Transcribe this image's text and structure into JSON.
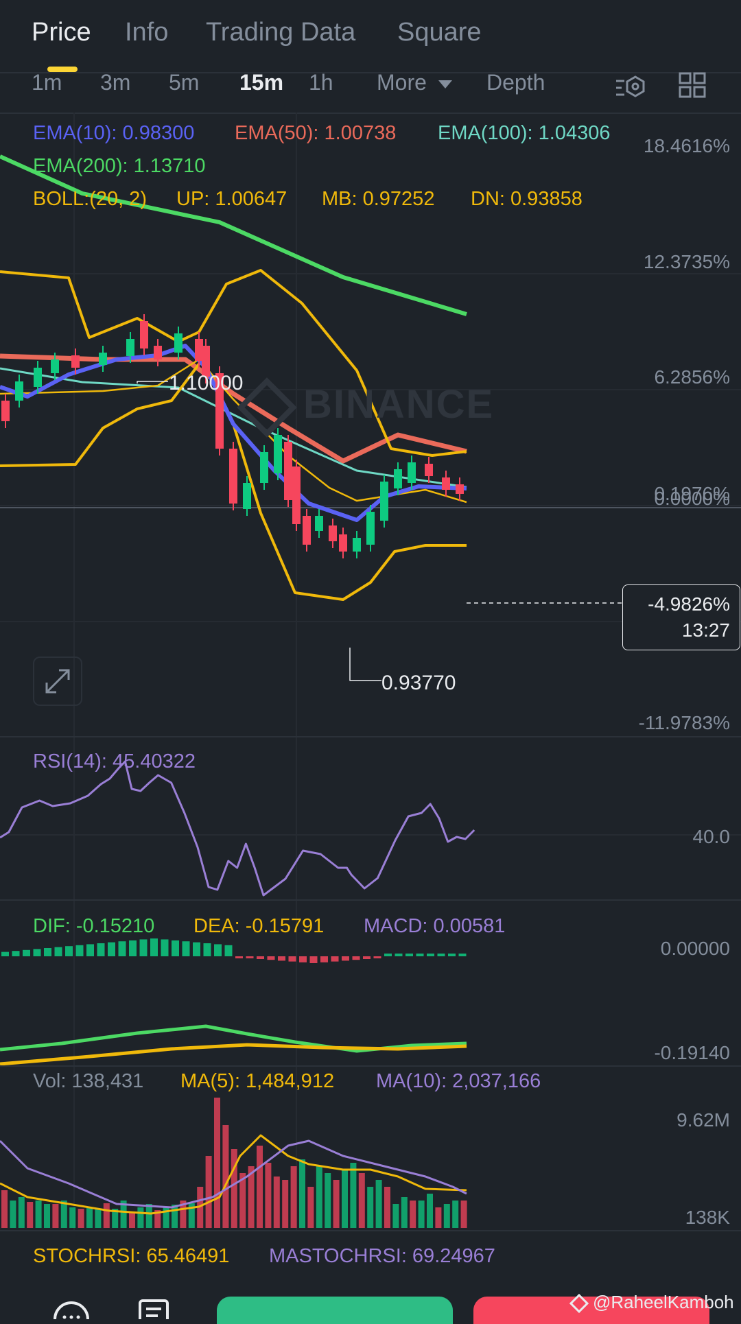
{
  "tabs": [
    "Price",
    "Info",
    "Trading Data",
    "Square"
  ],
  "active_tab": "Price",
  "intervals": [
    "1m",
    "3m",
    "5m",
    "15m",
    "1h"
  ],
  "active_interval": "15m",
  "more_label": "More",
  "depth_label": "Depth",
  "ema": {
    "ema10": "EMA(10): 0.98300",
    "ema50": "EMA(50): 1.00738",
    "ema100": "EMA(100): 1.04306",
    "ema200": "EMA(200): 1.13710"
  },
  "boll": {
    "label": "BOLL:(20, 2)",
    "up": "UP: 1.00647",
    "mb": "MB: 0.97252",
    "dn": "DN: 0.93858"
  },
  "price_axis": [
    "18.4616%",
    "12.3735%",
    "6.2856%",
    "0.1976%",
    "0.0000%",
    "-11.9783%"
  ],
  "high_label": "1.10000",
  "low_label": "0.93770",
  "watermark": "BINANCE",
  "current": {
    "change": "-4.9826%",
    "countdown": "13:27"
  },
  "rsi": {
    "label": "RSI(14): 45.40322",
    "axis": "40.0"
  },
  "macd": {
    "dif": "DIF: -0.15210",
    "dea": "DEA: -0.15791",
    "macd": "MACD: 0.00581",
    "axis_top": "0.00000",
    "axis_bottom": "-0.19140"
  },
  "volume": {
    "vol": "Vol: 138,431",
    "ma5": "MA(5): 1,484,912",
    "ma10": "MA(10): 2,037,166",
    "axis_top": "9.62M",
    "axis_bottom": "138K"
  },
  "stoch": {
    "stochrsi": "STOCHRSI: 65.46491",
    "mastochrsi": "MASTOCHRSI: 69.24967"
  },
  "watermark_credit": "@RaheelKamboh",
  "colors": {
    "bg": "#1e2329",
    "up": "#0ecb81",
    "down": "#f6465d",
    "ema10": "#5a62f4",
    "ema50": "#ea6a5a",
    "ema100": "#6fd8c5",
    "ema200": "#4cd964",
    "boll": "#f0b90b",
    "rsi": "#9a7fd6",
    "accent": "#fcd535"
  }
}
